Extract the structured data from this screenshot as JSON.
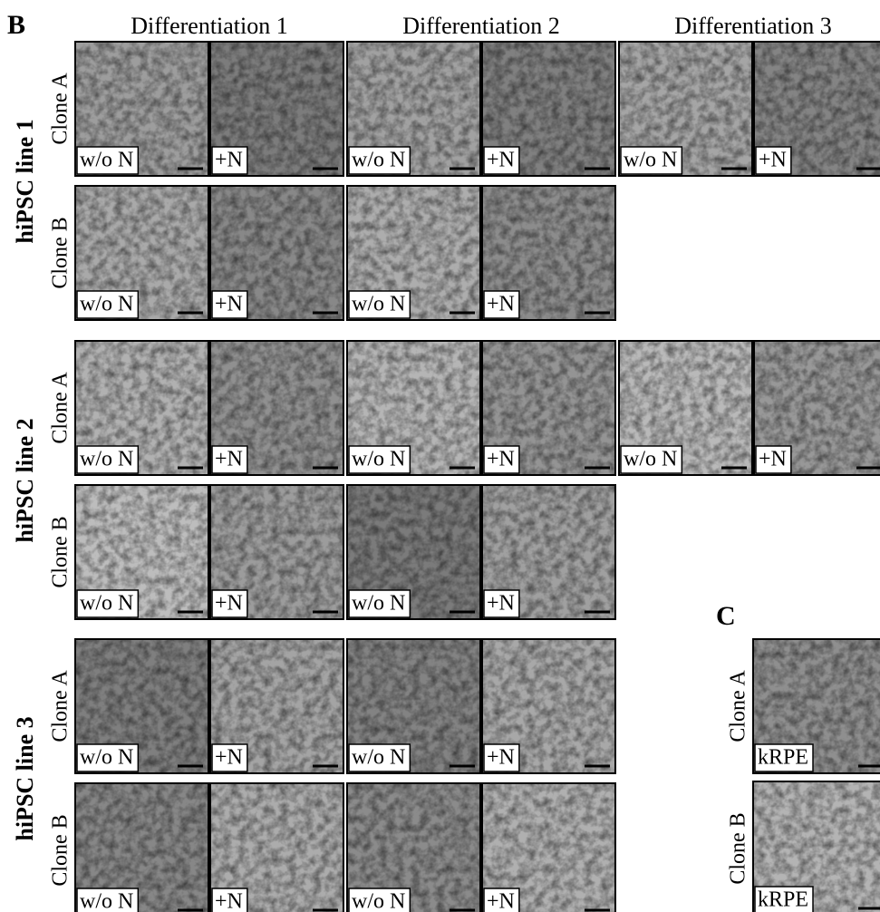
{
  "panel_b": {
    "label": "B",
    "columns": [
      "Differentiation 1",
      "Differentiation 2",
      "Differentiation 3"
    ],
    "rows": [
      {
        "line": "hiPSC line 1",
        "clones": [
          {
            "clone": "Clone A",
            "images": [
              [
                "w/o N",
                "+N"
              ],
              [
                "w/o N",
                "+N"
              ],
              [
                "w/o N",
                "+N"
              ]
            ]
          },
          {
            "clone": "Clone B",
            "images": [
              [
                "w/o N",
                "+N"
              ],
              [
                "w/o N",
                "+N"
              ]
            ]
          }
        ]
      },
      {
        "line": "hiPSC line 2",
        "clones": [
          {
            "clone": "Clone A",
            "images": [
              [
                "w/o N",
                "+N"
              ],
              [
                "w/o N",
                "+N"
              ],
              [
                "w/o N",
                "+N"
              ]
            ]
          },
          {
            "clone": "Clone B",
            "images": [
              [
                "w/o N",
                "+N"
              ],
              [
                "w/o N",
                "+N"
              ]
            ]
          }
        ]
      },
      {
        "line": "hiPSC line 3",
        "clones": [
          {
            "clone": "Clone A",
            "images": [
              [
                "w/o N",
                "+N"
              ],
              [
                "w/o N",
                "+N"
              ]
            ]
          },
          {
            "clone": "Clone B",
            "images": [
              [
                "w/o N",
                "+N"
              ],
              [
                "w/o N",
                "+N"
              ]
            ]
          }
        ]
      }
    ]
  },
  "panel_c": {
    "label": "C",
    "rows": [
      {
        "clone": "Clone A",
        "image": "kRPE"
      },
      {
        "clone": "Clone B",
        "image": "kRPE"
      }
    ]
  }
}
